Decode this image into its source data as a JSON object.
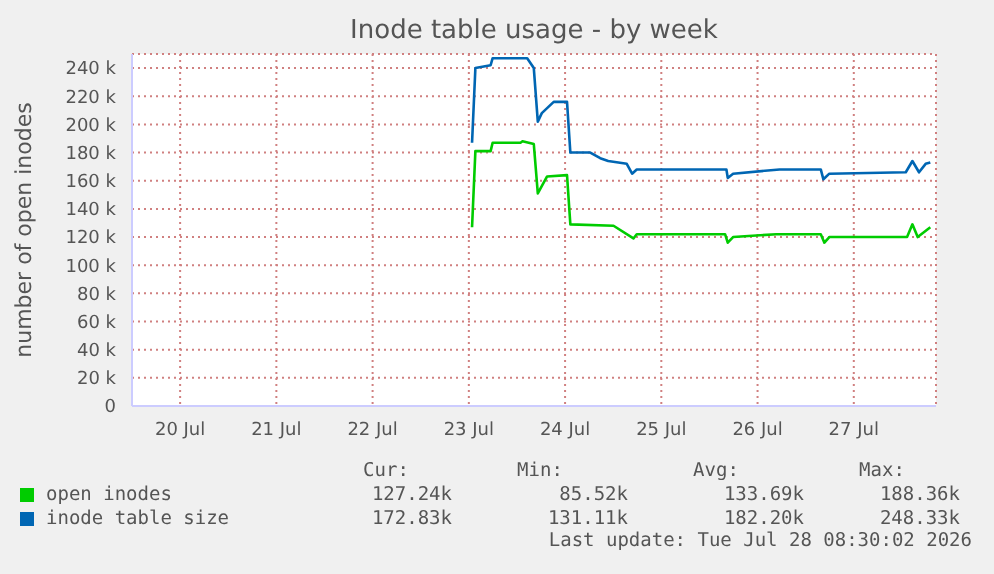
{
  "chart_data": {
    "type": "line",
    "title": "Inode table usage - by week",
    "ylabel": "number of open inodes",
    "xlim": [
      "2026-07-20T00:00",
      "2026-07-28T08:30"
    ],
    "xticks": [
      {
        "value": "2026-07-20T12:00",
        "label": "20 Jul"
      },
      {
        "value": "2026-07-21T12:00",
        "label": "21 Jul"
      },
      {
        "value": "2026-07-22T12:00",
        "label": "22 Jul"
      },
      {
        "value": "2026-07-23T12:00",
        "label": "23 Jul"
      },
      {
        "value": "2026-07-24T12:00",
        "label": "24 Jul"
      },
      {
        "value": "2026-07-25T12:00",
        "label": "25 Jul"
      },
      {
        "value": "2026-07-26T12:00",
        "label": "26 Jul"
      },
      {
        "value": "2026-07-27T12:00",
        "label": "27 Jul"
      }
    ],
    "ylim": [
      0,
      250000
    ],
    "yticks": [
      {
        "value": 0,
        "label": "0"
      },
      {
        "value": 20000,
        "label": "20 k"
      },
      {
        "value": 40000,
        "label": "40 k"
      },
      {
        "value": 60000,
        "label": "60 k"
      },
      {
        "value": 80000,
        "label": "80 k"
      },
      {
        "value": 100000,
        "label": "100 k"
      },
      {
        "value": 120000,
        "label": "120 k"
      },
      {
        "value": 140000,
        "label": "140 k"
      },
      {
        "value": 160000,
        "label": "160 k"
      },
      {
        "value": 180000,
        "label": "180 k"
      },
      {
        "value": 200000,
        "label": "200 k"
      },
      {
        "value": 220000,
        "label": "220 k"
      },
      {
        "value": 240000,
        "label": "240 k"
      }
    ],
    "grid": true,
    "legend": "bottom",
    "marker": "none",
    "line_style": "solid",
    "series": [
      {
        "name": "open inodes",
        "color": "#00cc00",
        "x": [
          "2026-07-23T12:48",
          "2026-07-23T13:38",
          "2026-07-23T17:26",
          "2026-07-23T17:56",
          "2026-07-24T00:53",
          "2026-07-24T01:23",
          "2026-07-24T04:12",
          "2026-07-24T05:12",
          "2026-07-24T07:31",
          "2026-07-24T12:29",
          "2026-07-24T13:19",
          "2026-07-25T00:05",
          "2026-07-25T05:03",
          "2026-07-25T05:52",
          "2026-07-26T03:54",
          "2026-07-26T04:34",
          "2026-07-26T05:54",
          "2026-07-26T16:40",
          "2026-07-27T03:46",
          "2026-07-27T04:40",
          "2026-07-27T05:54",
          "2026-07-28T01:17",
          "2026-07-28T02:37",
          "2026-07-28T03:56",
          "2026-07-28T07:05"
        ],
        "values": [
          127000,
          181000,
          181000,
          187000,
          187000,
          188000,
          186000,
          151000,
          163000,
          164000,
          129000,
          128000,
          119000,
          122000,
          122000,
          116000,
          120000,
          122000,
          122000,
          116000,
          120000,
          120000,
          129000,
          120000,
          127000
        ]
      },
      {
        "name": "inode table size",
        "color": "#0066b3",
        "x": [
          "2026-07-23T12:48",
          "2026-07-23T13:38",
          "2026-07-23T17:26",
          "2026-07-23T17:56",
          "2026-07-24T02:33",
          "2026-07-24T04:12",
          "2026-07-24T05:12",
          "2026-07-24T06:12",
          "2026-07-24T09:10",
          "2026-07-24T12:29",
          "2026-07-24T13:19",
          "2026-07-24T18:17",
          "2026-07-24T20:46",
          "2026-07-24T22:45",
          "2026-07-25T03:23",
          "2026-07-25T04:43",
          "2026-07-25T05:52",
          "2026-07-26T04:14",
          "2026-07-26T04:34",
          "2026-07-26T05:54",
          "2026-07-26T17:29",
          "2026-07-27T03:46",
          "2026-07-27T04:25",
          "2026-07-27T05:54",
          "2026-07-28T00:58",
          "2026-07-28T02:37",
          "2026-07-28T04:16",
          "2026-07-28T05:55",
          "2026-07-28T07:05"
        ],
        "values": [
          187000,
          240000,
          242000,
          247000,
          247000,
          240000,
          202000,
          208000,
          216000,
          216000,
          180000,
          180000,
          176000,
          174000,
          172000,
          165000,
          168000,
          168000,
          162000,
          165000,
          168000,
          168000,
          161000,
          165000,
          166000,
          174000,
          166000,
          172000,
          173000
        ]
      }
    ],
    "annotations": [
      "Cur:",
      "Min:",
      "Avg:",
      "Max:",
      "127.24k",
      "85.52k",
      "133.69k",
      "188.36k",
      "172.83k",
      "131.11k",
      "182.20k",
      "248.33k",
      "Last update: Tue Jul 28 08:30:02 2026"
    ]
  }
}
